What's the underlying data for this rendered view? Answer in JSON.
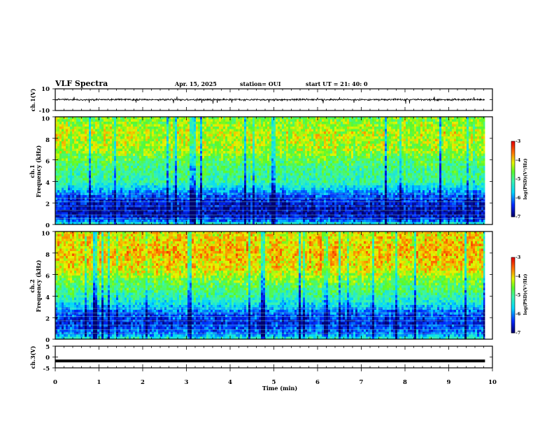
{
  "header": {
    "title": "VLF Spectra",
    "date": "Apr. 15, 2025",
    "station": "station= OUI",
    "start": "start UT =  21: 40: 0"
  },
  "colors": {
    "spectrogram_low": "#000070",
    "spectrogram_high": "#ff1a00",
    "trace": "#000000"
  },
  "chart_data": [
    {
      "type": "line",
      "panel": "ch1-waveform",
      "ylabel": "ch.1(V)",
      "ylim": [
        -10,
        10
      ],
      "y_ticks": [
        "10",
        "-10"
      ],
      "x_range": [
        0,
        10
      ],
      "x_data_end": 9.83,
      "baseline": 0,
      "noise_amplitude_v": 1.2,
      "spikes_v": [
        3,
        -4
      ]
    },
    {
      "type": "heatmap",
      "panel": "ch1-spectrogram",
      "ylabel_line1": "ch.1",
      "ylabel_line2": "Frequency (kHz)",
      "ylim": [
        0,
        10
      ],
      "y_ticks": [
        "0",
        "2",
        "4",
        "6",
        "8",
        "10"
      ],
      "x_range": [
        0,
        10
      ],
      "x_data_end": 9.83,
      "profile_khz": [
        {
          "f": 0.0,
          "v": -5.2
        },
        {
          "f": 0.4,
          "v": -6.3
        },
        {
          "f": 1.0,
          "v": -6.8
        },
        {
          "f": 2.0,
          "v": -6.6
        },
        {
          "f": 2.8,
          "v": -6.2
        },
        {
          "f": 3.3,
          "v": -5.7
        },
        {
          "f": 4.0,
          "v": -5.1
        },
        {
          "f": 5.5,
          "v": -4.9
        },
        {
          "f": 7.0,
          "v": -4.35
        },
        {
          "f": 8.5,
          "v": -4.25
        },
        {
          "f": 10.0,
          "v": -4.6
        }
      ],
      "colorbar": {
        "label": "log(PSD)(V²/Hz)",
        "range": [
          -7,
          -3
        ],
        "ticks": [
          "-3",
          "-4",
          "-5",
          "-6",
          "-7"
        ]
      }
    },
    {
      "type": "heatmap",
      "panel": "ch2-spectrogram",
      "ylabel_line1": "ch.2",
      "ylabel_line2": "Frequency (kHz)",
      "ylim": [
        0,
        10
      ],
      "y_ticks": [
        "0",
        "2",
        "4",
        "6",
        "8",
        "10"
      ],
      "x_range": [
        0,
        10
      ],
      "x_data_end": 9.83,
      "profile_khz": [
        {
          "f": 0.0,
          "v": -5.2
        },
        {
          "f": 0.5,
          "v": -6.1
        },
        {
          "f": 1.5,
          "v": -6.5
        },
        {
          "f": 2.5,
          "v": -6.2
        },
        {
          "f": 3.2,
          "v": -5.6
        },
        {
          "f": 4.0,
          "v": -5.1
        },
        {
          "f": 5.5,
          "v": -4.6
        },
        {
          "f": 6.5,
          "v": -4.1
        },
        {
          "f": 8.0,
          "v": -3.9
        },
        {
          "f": 10.0,
          "v": -4.1
        }
      ],
      "colorbar": {
        "label": "log(PSD)(V²/Hz)",
        "range": [
          -7,
          -3
        ],
        "ticks": [
          "-3",
          "-4",
          "-5",
          "-6",
          "-7"
        ]
      }
    },
    {
      "type": "line",
      "panel": "ch3-waveform",
      "ylabel": "ch.3(V)",
      "ylim": [
        -5,
        5
      ],
      "y_ticks": [
        "5",
        "0",
        "-5"
      ],
      "x_range": [
        0,
        10
      ],
      "x_data_end": 9.83,
      "level_v": -1.8,
      "xlabel": "Time (min)",
      "x_ticks": [
        "0",
        "1",
        "2",
        "3",
        "4",
        "5",
        "6",
        "7",
        "8",
        "9",
        "10"
      ]
    }
  ]
}
